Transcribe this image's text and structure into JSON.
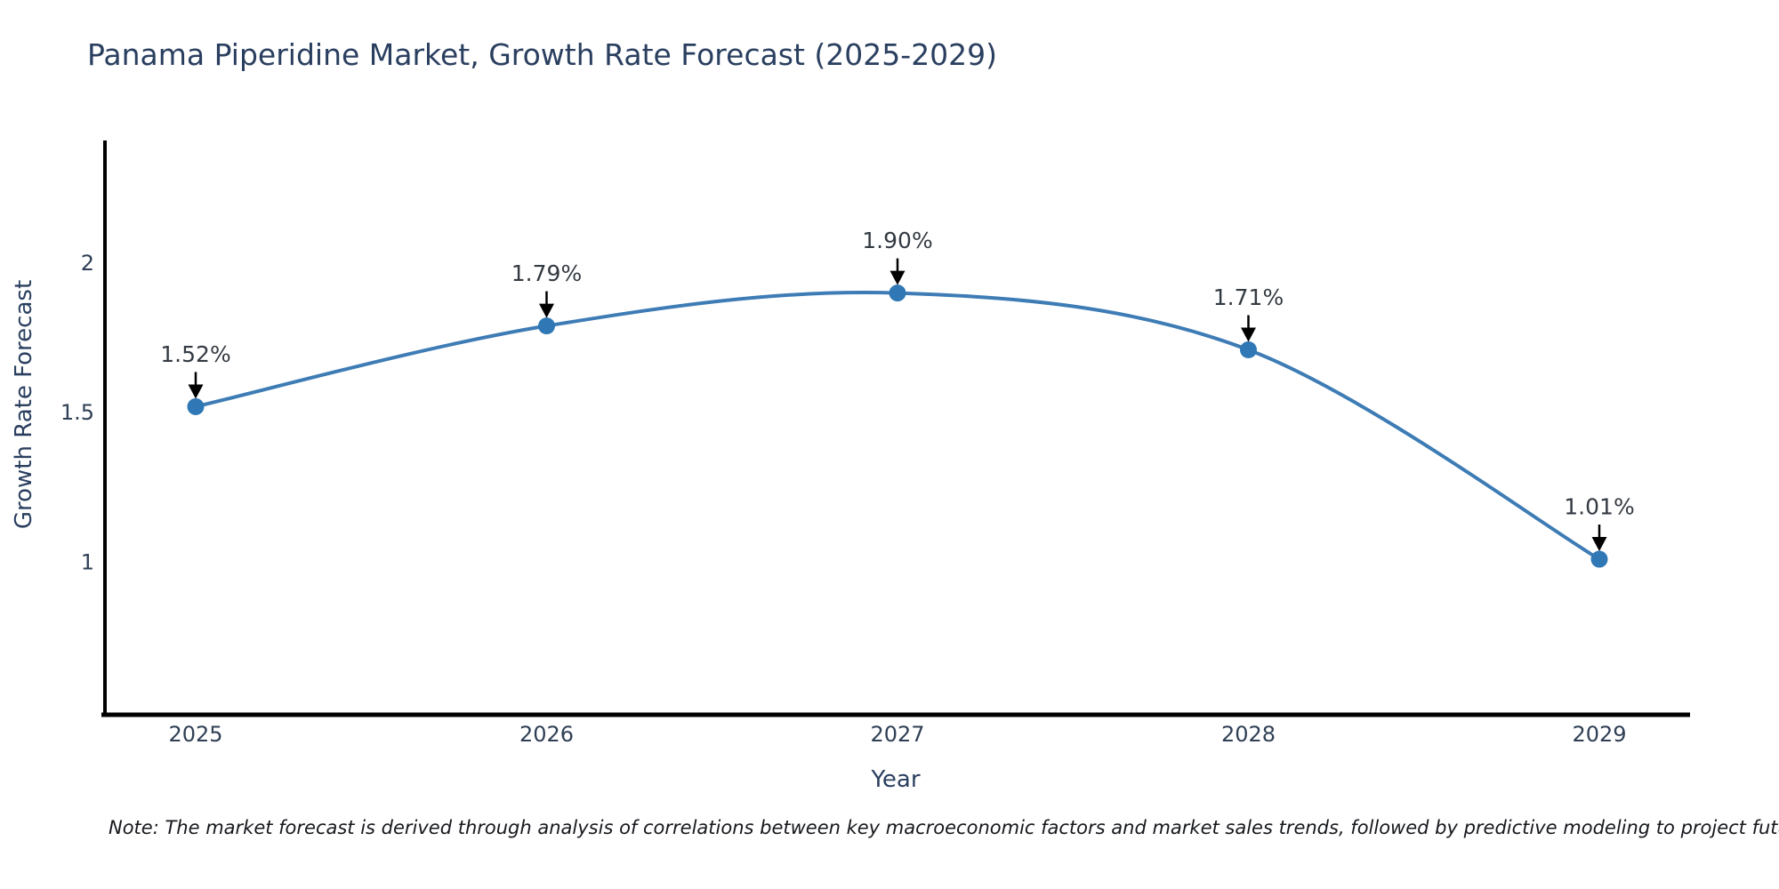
{
  "page": {
    "background": "#ffffff"
  },
  "chart": {
    "note": "Note: The market forecast is derived through analysis of correlations between key macroeconomic factors and market sales trends, followed by predictive modeling to project future sales"
  },
  "chart_data": {
    "type": "line",
    "title": "Panama Piperidine Market, Growth Rate Forecast (2025-2029)",
    "xlabel": "Year",
    "ylabel": "Growth Rate Forecast",
    "x": [
      2025,
      2026,
      2027,
      2028,
      2029
    ],
    "x_labels": [
      "2025",
      "2026",
      "2027",
      "2028",
      "2029"
    ],
    "series": [
      {
        "name": "Growth Rate Forecast",
        "values": [
          1.52,
          1.79,
          1.9,
          1.71,
          1.01
        ]
      }
    ],
    "point_labels": [
      "1.52%",
      "1.79%",
      "1.90%",
      "1.71%",
      "1.01%"
    ],
    "yticks": {
      "values": [
        1,
        1.5,
        2
      ],
      "labels": [
        "1",
        "1.5",
        "2"
      ]
    },
    "ylim": [
      0.49,
      2.41
    ],
    "grid": false,
    "legend": "none",
    "smooth": true,
    "line_color": "#3e7cb5",
    "marker_color": "#2f78b5",
    "arrow_color": "#000000",
    "axis_color": "#000000",
    "tick_color": "#2f3f55",
    "annotation_color": "#333a42",
    "title_color": "#2a3f5f"
  }
}
